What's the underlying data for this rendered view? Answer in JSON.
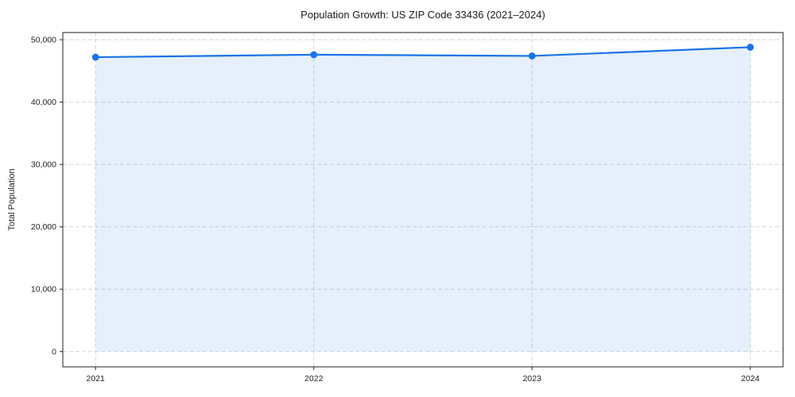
{
  "chart_data": {
    "type": "area",
    "title": "Population Growth: US ZIP Code 33436 (2021–2024)",
    "xlabel": "",
    "ylabel": "Total Population",
    "x": [
      2021,
      2022,
      2023,
      2024
    ],
    "categories": [
      "2021",
      "2022",
      "2023",
      "2024"
    ],
    "series": [
      {
        "name": "Total Population",
        "values": [
          47200,
          47600,
          47400,
          48800
        ]
      }
    ],
    "yticks": [
      0,
      10000,
      20000,
      30000,
      40000,
      50000
    ],
    "ylim": [
      -2450,
      51150
    ],
    "xlim": [
      2020.85,
      2024.15
    ],
    "grid": true,
    "grid_style": "dashed",
    "legend": "none",
    "marker": "circle",
    "colors": {
      "line": "#1a73e8",
      "marker": "#1a73e8",
      "fill": "rgba(26,115,232,0.11)",
      "grid": "#d6d6d6",
      "spine": "#1f1f1f",
      "tick_text": "#1f1f1f",
      "title_text": "#1a1a1a",
      "background": "#ffffff"
    }
  }
}
